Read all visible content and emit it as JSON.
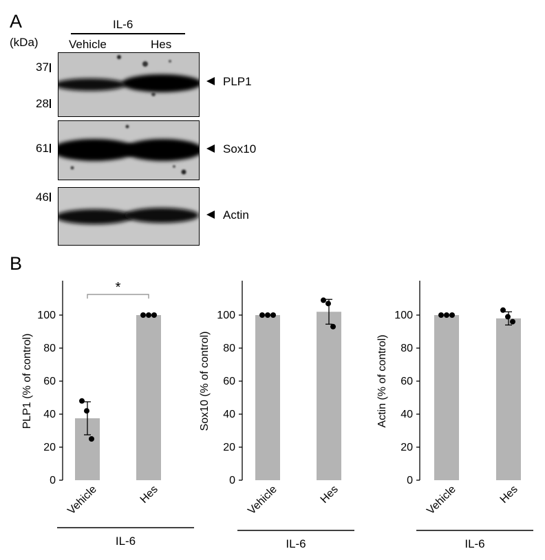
{
  "panel_a": {
    "label": "A",
    "unit": "(kDa)",
    "condition": "IL-6",
    "lanes": [
      "Vehicle",
      "Hes"
    ],
    "markers": [
      "37",
      "28",
      "61",
      "46"
    ],
    "bands": [
      "PLP1",
      "Sox10",
      "Actin"
    ]
  },
  "panel_b": {
    "label": "B"
  },
  "chart_data": [
    {
      "type": "bar",
      "categories": [
        "Vehicle",
        "Hes"
      ],
      "values": [
        37.5,
        100
      ],
      "errors": [
        10,
        0
      ],
      "points": [
        [
          48,
          42,
          25
        ],
        [
          100,
          100,
          100
        ]
      ],
      "ylabel": "PLP1 (% of control)",
      "xlabel": "IL-6",
      "ylim": [
        0,
        120
      ],
      "yticks": [
        "0",
        "20",
        "40",
        "60",
        "80",
        "100"
      ],
      "significance": "*",
      "bar_color": "#b4b4b4"
    },
    {
      "type": "bar",
      "categories": [
        "Vehicle",
        "Hes"
      ],
      "values": [
        100,
        102
      ],
      "errors": [
        0,
        7.5
      ],
      "points": [
        [
          100,
          100,
          100
        ],
        [
          109,
          107,
          93
        ]
      ],
      "ylabel": "Sox10 (% of control)",
      "xlabel": "IL-6",
      "ylim": [
        0,
        120
      ],
      "yticks": [
        "0",
        "20",
        "40",
        "60",
        "80",
        "100"
      ],
      "bar_color": "#b4b4b4"
    },
    {
      "type": "bar",
      "categories": [
        "Vehicle",
        "Hes"
      ],
      "values": [
        100,
        98
      ],
      "errors": [
        0,
        4
      ],
      "points": [
        [
          100,
          100,
          100
        ],
        [
          103,
          99,
          96
        ]
      ],
      "ylabel": "Actin (% of control)",
      "xlabel": "IL-6",
      "ylim": [
        0,
        120
      ],
      "yticks": [
        "0",
        "20",
        "40",
        "60",
        "80",
        "100"
      ],
      "bar_color": "#b4b4b4"
    }
  ]
}
